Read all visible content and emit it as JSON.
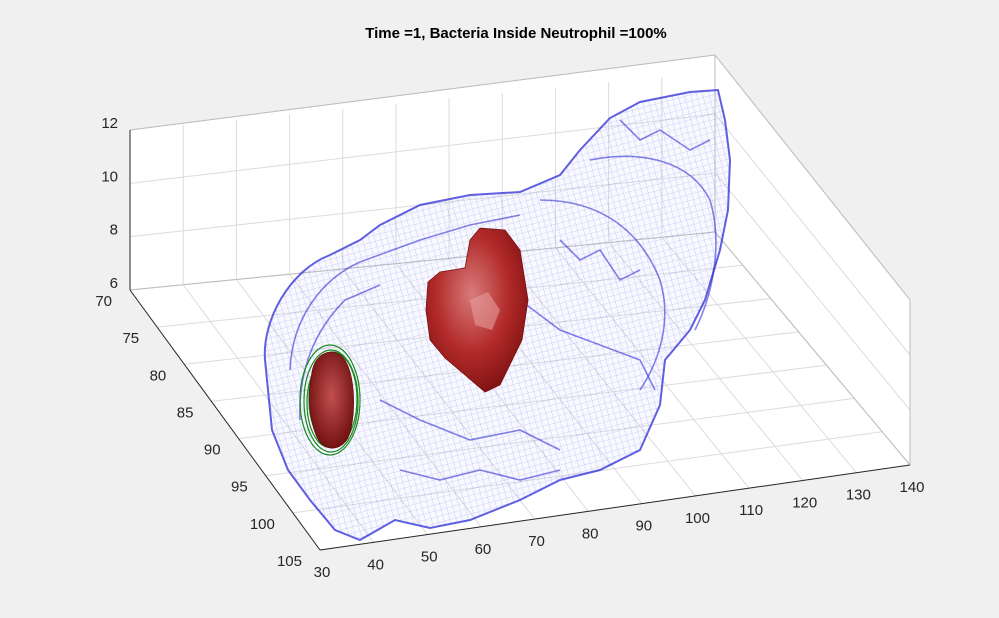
{
  "chart_data": {
    "type": "3d-isosurface",
    "title": "Time =1, Bacteria Inside Neutrophil  =100%",
    "x_ticks": [
      "30",
      "40",
      "50",
      "60",
      "70",
      "80",
      "90",
      "100",
      "110",
      "120",
      "130",
      "140"
    ],
    "y_ticks": [
      "70",
      "75",
      "80",
      "85",
      "90",
      "95",
      "100",
      "105"
    ],
    "z_ticks": [
      "6",
      "8",
      "10",
      "12"
    ],
    "xlim": [
      30,
      140
    ],
    "ylim": [
      70,
      105
    ],
    "zlim": [
      6,
      12
    ],
    "grid": true,
    "surfaces": [
      {
        "role": "outer cell mesh",
        "color": "#1a1aff"
      },
      {
        "role": "inner body",
        "color": "#a01818"
      },
      {
        "role": "bacteria contour",
        "color": "#1a8a1a"
      }
    ]
  }
}
